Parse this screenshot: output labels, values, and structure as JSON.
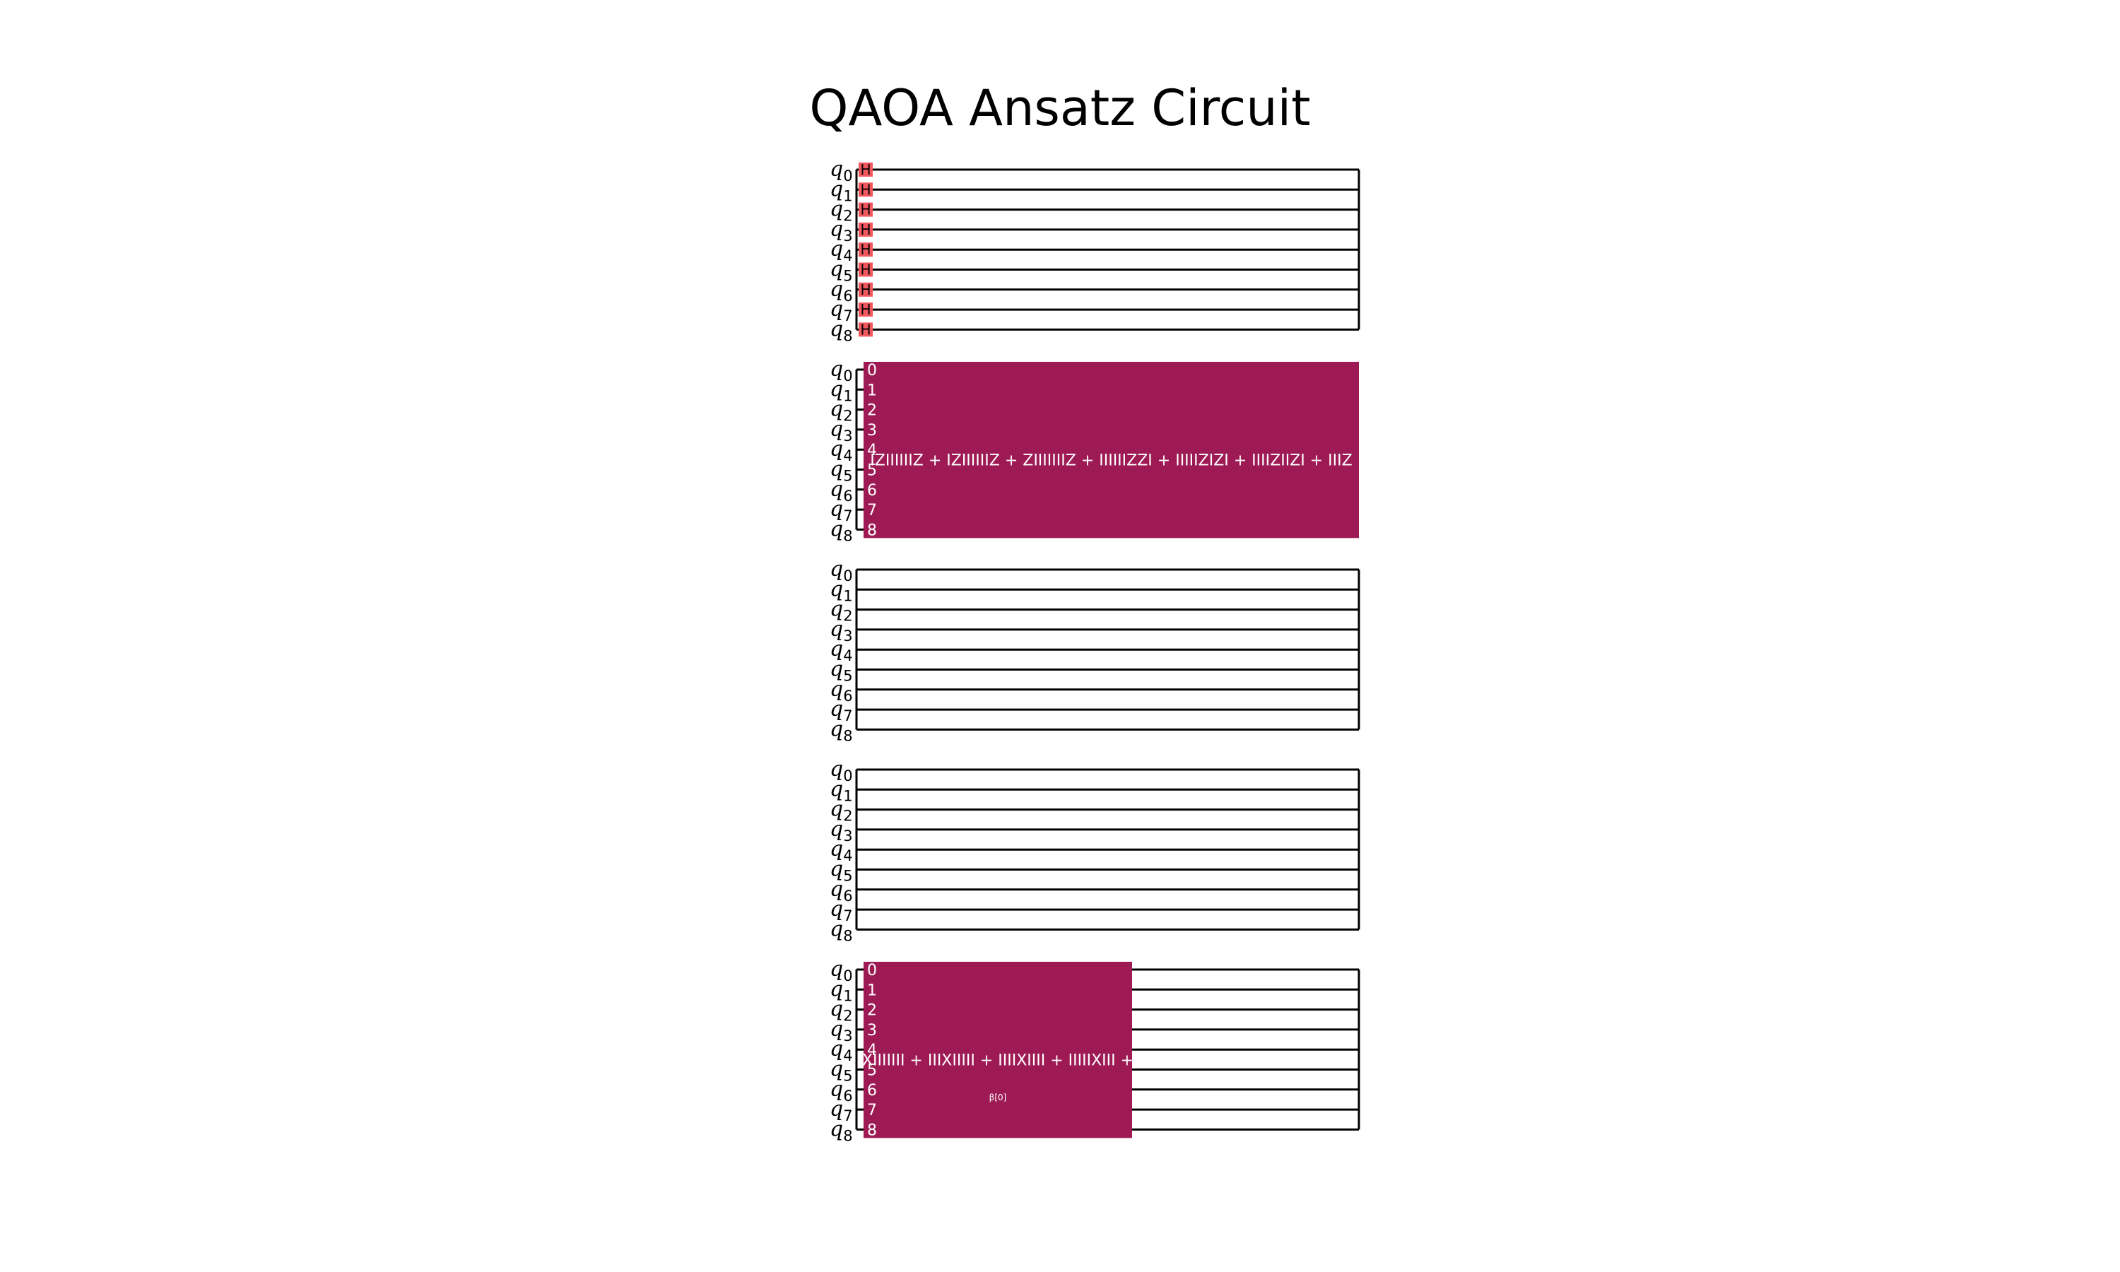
{
  "title": "QAOA Ansatz Circuit",
  "qubit_prefix": "q",
  "qubits": [
    "0",
    "1",
    "2",
    "3",
    "4",
    "5",
    "6",
    "7",
    "8"
  ],
  "colors": {
    "h_gate": "#f2575e",
    "pauli_gate": "#9e1a54",
    "wire": "#000000"
  },
  "sections": [
    {
      "type": "h_layer",
      "gate_label": "H"
    },
    {
      "type": "pauli_evolution",
      "gate_text": "IZIIIIIIZ + IZIIIIIIZ + ZIIIIIIIZ + IIIIIIZZI + IIIIIZIZI + IIIIZIIZI + IIIZ",
      "param_text": "",
      "pin_labels": [
        "0",
        "1",
        "2",
        "3",
        "4",
        "5",
        "6",
        "7",
        "8"
      ]
    },
    {
      "type": "empty"
    },
    {
      "type": "empty"
    },
    {
      "type": "pauli_evolution",
      "gate_text": "XIIIIIII + IIIXIIIII + IIIIXIIII + IIIIIXIII +",
      "param_text": "β[0]",
      "pin_labels": [
        "0",
        "1",
        "2",
        "3",
        "4",
        "5",
        "6",
        "7",
        "8"
      ]
    }
  ]
}
